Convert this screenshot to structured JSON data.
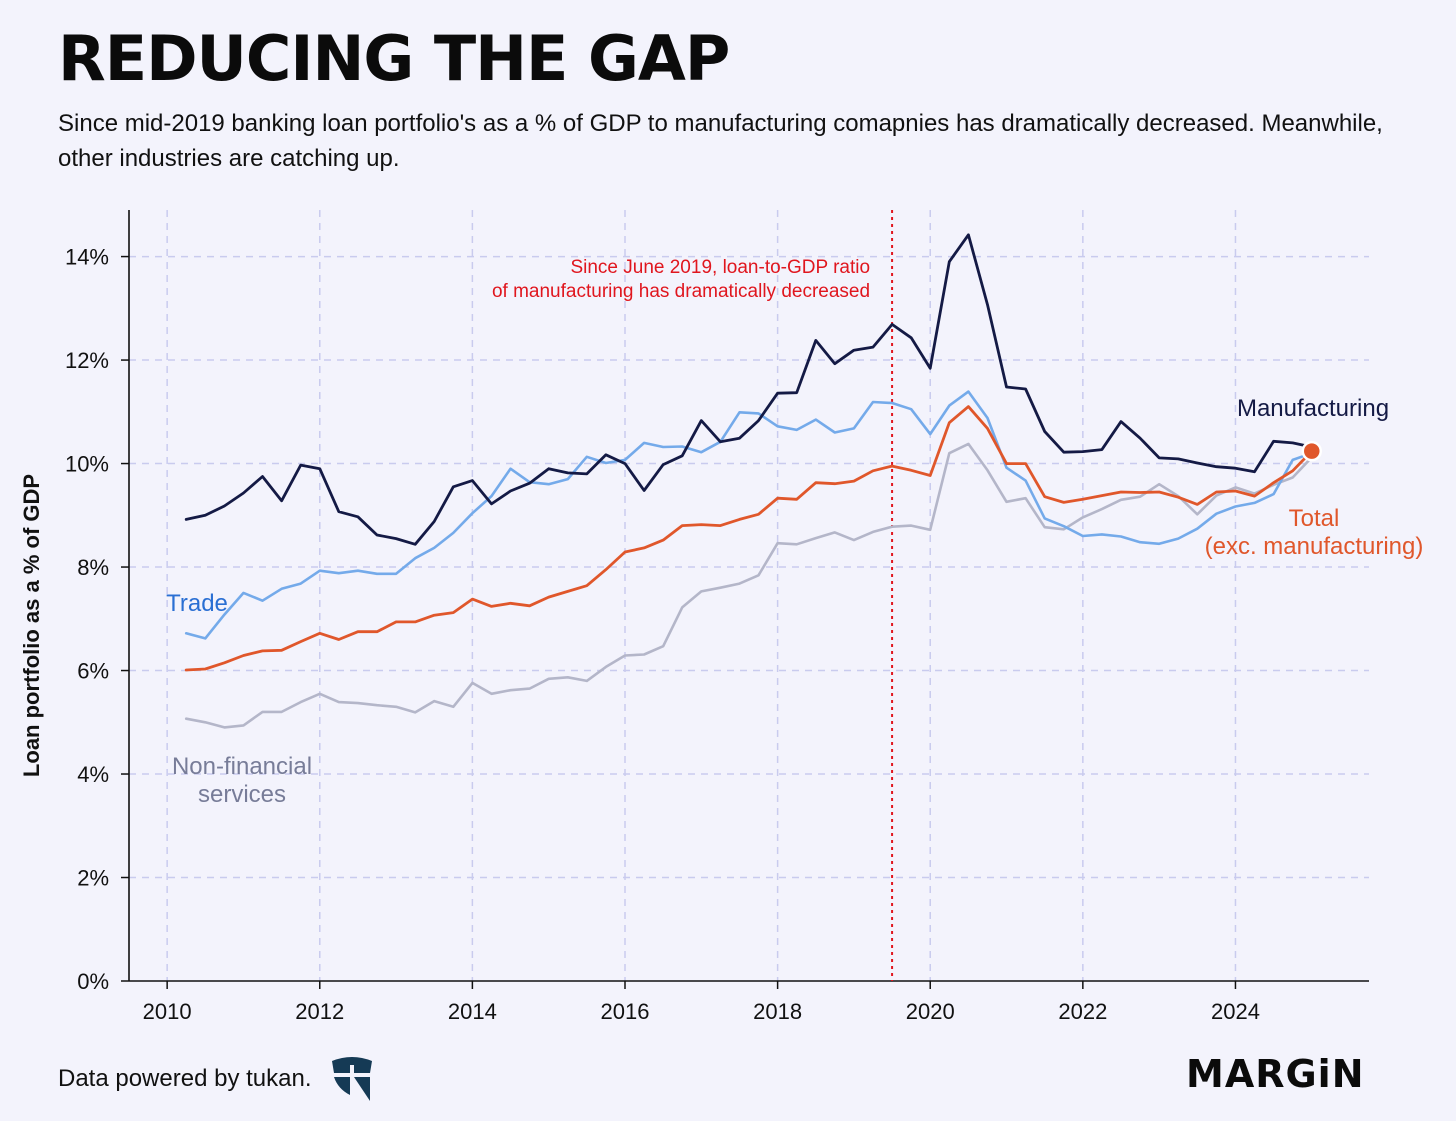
{
  "header": {
    "title": "REDUCING THE GAP",
    "subtitle": "Since mid-2019 banking loan portfolio's as a % of GDP to manufacturing comapnies has dramatically decreased. Meanwhile, other industries are catching up."
  },
  "footer": {
    "source_text": "Data powered by tukan.",
    "brand": "MARGiN"
  },
  "colors": {
    "background": "#f3f3fc",
    "grid": "#c9cbee",
    "annotation": "#e0161e",
    "manufacturing": "#141a45",
    "trade": "#74aaea",
    "total": "#e0572b",
    "non_financial": "#b4b6c9"
  },
  "chart_data": {
    "type": "line",
    "title": "REDUCING THE GAP",
    "xlabel": "",
    "ylabel": "Loan portfolio as a % of GDP",
    "xlim": [
      2009.5,
      2025.75
    ],
    "ylim": [
      0,
      14.9
    ],
    "x_ticks": [
      2010,
      2012,
      2014,
      2016,
      2018,
      2020,
      2022,
      2024
    ],
    "x_tick_labels": [
      "2010",
      "2012",
      "2014",
      "2016",
      "2018",
      "2020",
      "2022",
      "2024"
    ],
    "y_ticks": [
      0,
      2,
      4,
      6,
      8,
      10,
      12,
      14
    ],
    "y_tick_labels": [
      "0%",
      "2%",
      "4%",
      "6%",
      "8%",
      "10%",
      "12%",
      "14%"
    ],
    "grid": true,
    "x_start": 2010.25,
    "x_step": 0.25,
    "series": [
      {
        "name": "Non-financial services",
        "label_lines": [
          "Non-financial",
          "services"
        ],
        "values": [
          5.07,
          5.0,
          4.9,
          4.94,
          5.2,
          5.2,
          5.39,
          5.55,
          5.39,
          5.37,
          5.33,
          5.3,
          5.19,
          5.41,
          5.3,
          5.76,
          5.55,
          5.62,
          5.65,
          5.84,
          5.87,
          5.8,
          6.07,
          6.29,
          6.31,
          6.47,
          7.22,
          7.53,
          7.6,
          7.68,
          7.84,
          8.46,
          8.44,
          8.56,
          8.67,
          8.52,
          8.68,
          8.78,
          8.8,
          8.72,
          10.2,
          10.38,
          9.87,
          9.26,
          9.33,
          8.77,
          8.73,
          8.96,
          9.12,
          9.3,
          9.36,
          9.6,
          9.37,
          9.02,
          9.38,
          9.54,
          9.42,
          9.59,
          9.73,
          10.12
        ]
      },
      {
        "name": "Trade",
        "label_lines": [
          "Trade"
        ],
        "values": [
          6.72,
          6.62,
          7.08,
          7.5,
          7.35,
          7.58,
          7.68,
          7.93,
          7.88,
          7.93,
          7.87,
          7.87,
          8.17,
          8.37,
          8.66,
          9.04,
          9.37,
          9.9,
          9.64,
          9.6,
          9.7,
          10.13,
          10.01,
          10.07,
          10.4,
          10.32,
          10.33,
          10.22,
          10.42,
          10.99,
          10.97,
          10.72,
          10.65,
          10.85,
          10.6,
          10.68,
          11.19,
          11.17,
          11.05,
          10.57,
          11.12,
          11.39,
          10.88,
          9.92,
          9.67,
          8.94,
          8.79,
          8.6,
          8.63,
          8.59,
          8.48,
          8.45,
          8.55,
          8.74,
          9.03,
          9.17,
          9.24,
          9.41,
          10.07,
          10.2
        ]
      },
      {
        "name": "Total (exc. manufacturing)",
        "label_lines": [
          "Total",
          "(exc. manufacturing)"
        ],
        "values": [
          6.01,
          6.03,
          6.15,
          6.29,
          6.38,
          6.39,
          6.56,
          6.72,
          6.6,
          6.75,
          6.75,
          6.94,
          6.94,
          7.07,
          7.12,
          7.38,
          7.24,
          7.3,
          7.25,
          7.42,
          7.53,
          7.64,
          7.95,
          8.29,
          8.37,
          8.52,
          8.8,
          8.82,
          8.8,
          8.92,
          9.02,
          9.33,
          9.31,
          9.63,
          9.61,
          9.66,
          9.86,
          9.95,
          9.87,
          9.77,
          10.79,
          11.1,
          10.68,
          10.0,
          10.0,
          9.36,
          9.25,
          9.31,
          9.38,
          9.45,
          9.44,
          9.45,
          9.35,
          9.21,
          9.45,
          9.47,
          9.37,
          9.63,
          9.86,
          10.24
        ]
      },
      {
        "name": "Manufacturing",
        "label_lines": [
          "Manufacturing"
        ],
        "values": [
          8.92,
          9.0,
          9.18,
          9.43,
          9.75,
          9.28,
          9.97,
          9.9,
          9.07,
          8.97,
          8.62,
          8.55,
          8.44,
          8.88,
          9.55,
          9.67,
          9.22,
          9.47,
          9.62,
          9.9,
          9.82,
          9.8,
          10.17,
          10.0,
          9.48,
          9.98,
          10.15,
          10.83,
          10.42,
          10.49,
          10.83,
          11.36,
          11.37,
          12.38,
          11.93,
          12.19,
          12.25,
          12.69,
          12.43,
          11.84,
          13.9,
          14.42,
          13.07,
          11.48,
          11.44,
          10.62,
          10.22,
          10.23,
          10.27,
          10.81,
          10.49,
          10.11,
          10.09,
          10.01,
          9.94,
          9.91,
          9.84,
          10.43,
          10.4,
          10.32
        ]
      }
    ],
    "reference_line": {
      "x": 2019.5,
      "label_lines": [
        "Since June 2019, loan-to-GDP ratio",
        "of manufacturing has dramatically decreased"
      ]
    },
    "end_marker": {
      "x": 2025.0,
      "y": 10.24
    }
  }
}
